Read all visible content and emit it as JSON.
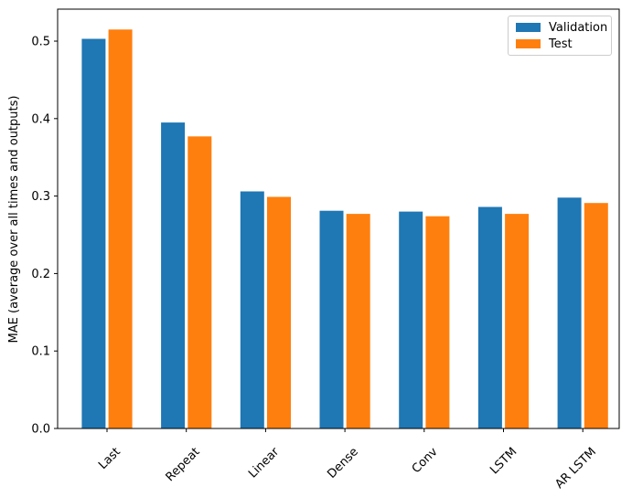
{
  "figure": {
    "background": "#ffffff"
  },
  "chart_data": {
    "type": "bar",
    "title": "",
    "xlabel": "",
    "ylabel": "MAE (average over all times and outputs)",
    "categories": [
      "Last",
      "Repeat",
      "Linear",
      "Dense",
      "Conv",
      "LSTM",
      "AR LSTM"
    ],
    "series": [
      {
        "name": "Validation",
        "color": "#1f77b4",
        "values": [
          0.503,
          0.395,
          0.306,
          0.281,
          0.28,
          0.286,
          0.298
        ]
      },
      {
        "name": "Test",
        "color": "#ff7f0e",
        "values": [
          0.515,
          0.377,
          0.299,
          0.277,
          0.274,
          0.277,
          0.291
        ]
      }
    ],
    "ylim": [
      0,
      0.5413
    ],
    "yticks": [
      "0.0",
      "0.1",
      "0.2",
      "0.3",
      "0.4",
      "0.5"
    ],
    "xtick_rotation": 45,
    "grid": false,
    "legend": {
      "position": "upper right",
      "entries": [
        "Validation",
        "Test"
      ]
    },
    "axis_color": "#000000"
  }
}
